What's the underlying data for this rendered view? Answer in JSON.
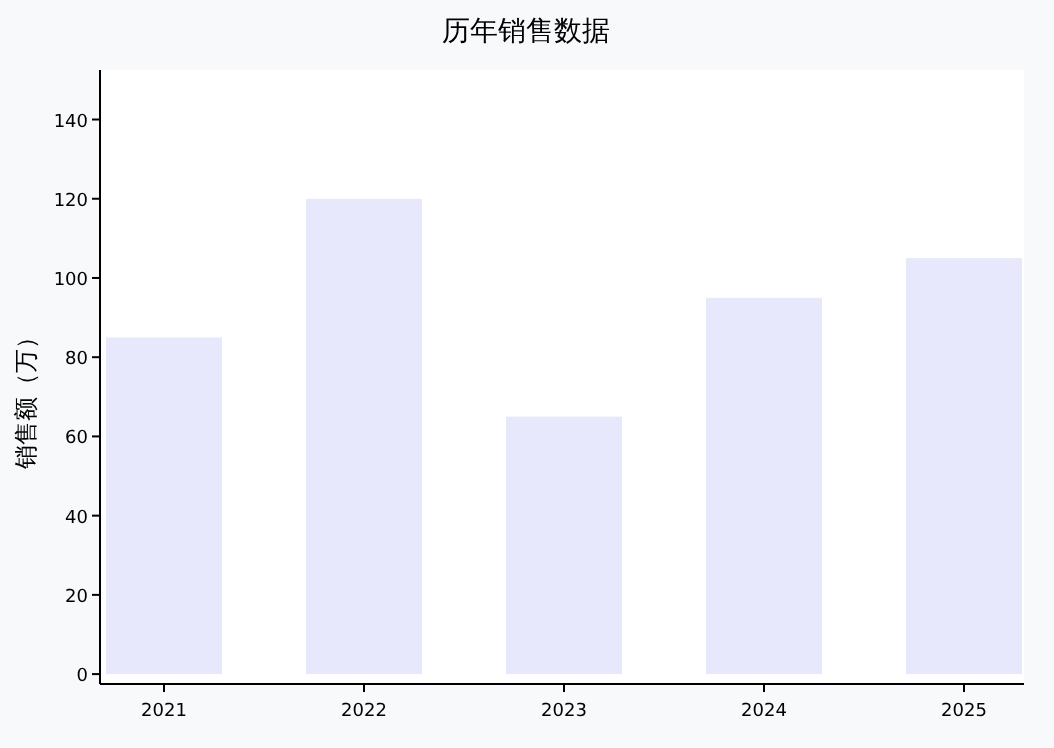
{
  "chart_data": {
    "type": "bar",
    "title": "历年销售数据",
    "ylabel": "销售额（万）",
    "categories": [
      "2021",
      "2022",
      "2023",
      "2024",
      "2025"
    ],
    "values": [
      85,
      120,
      65,
      95,
      105
    ],
    "color": "#e8e8fc",
    "ylim": [
      -2.5,
      152.5
    ],
    "yticks": [
      0,
      20,
      40,
      60,
      80,
      100,
      120,
      140
    ]
  }
}
